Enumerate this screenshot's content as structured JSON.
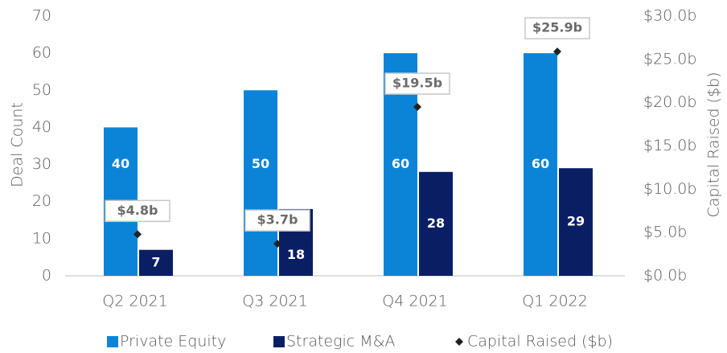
{
  "chart_data": {
    "type": "bar",
    "y_label": "Deal Count",
    "y2_label": "Capital Raised ($b)",
    "categories": [
      "Q2 2021",
      "Q3 2021",
      "Q4 2021",
      "Q1 2022"
    ],
    "series": [
      {
        "name": "Private Equity",
        "color": "#0b84d8",
        "values": [
          40,
          50,
          60,
          60
        ]
      },
      {
        "name": "Strategic M&A",
        "color": "#0a1f63",
        "values": [
          7,
          18,
          28,
          29
        ]
      },
      {
        "name": "Capital Raised ($b)",
        "color": "#222222",
        "type": "scatter",
        "axis": "y2",
        "values": [
          4.8,
          3.7,
          19.5,
          25.9
        ],
        "value_labels": [
          "$4.8b",
          "$3.7b",
          "$19.5b",
          "$25.9b"
        ]
      }
    ],
    "ylim": [
      0,
      70
    ],
    "yticks": [
      0,
      10,
      20,
      30,
      40,
      50,
      60,
      70
    ],
    "y2lim": [
      0,
      30
    ],
    "y2ticks": [
      {
        "value": 0,
        "label": "$0.0b"
      },
      {
        "value": 5,
        "label": "$5.0b"
      },
      {
        "value": 10,
        "label": "$10.0b"
      },
      {
        "value": 15,
        "label": "$15.0b"
      },
      {
        "value": 20,
        "label": "$20.0b"
      },
      {
        "value": 25,
        "label": "$25.0b"
      },
      {
        "value": 30,
        "label": "$30.0b"
      }
    ],
    "grid": false,
    "legend": "bottom"
  }
}
